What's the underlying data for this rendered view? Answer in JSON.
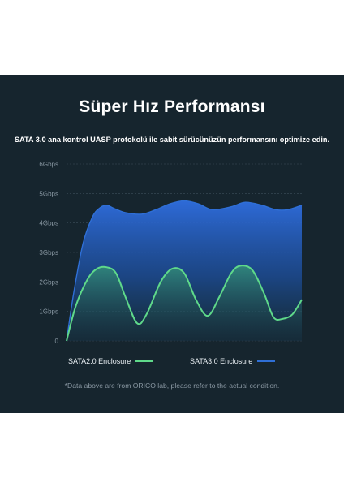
{
  "header": {
    "title": "Süper Hız Performansı",
    "subtitle": "SATA 3.0 ana kontrol UASP protokolü ile sabit sürücünüzün performansını optimize edin."
  },
  "legend": {
    "sata2": "SATA2.0 Enclosure",
    "sata3": "SATA3.0 Enclosure"
  },
  "footnote": "*Data above are from ORICO lab, please refer to the actual condition.",
  "colors": {
    "background": "#16252e",
    "sata2": "#5fd98a",
    "sata3": "#2f6fd6"
  },
  "chart_data": {
    "type": "area",
    "ylim": [
      0,
      6
    ],
    "yticks": [
      0,
      1,
      2,
      3,
      4,
      5,
      6
    ],
    "ytick_labels": [
      "0",
      "1Gbps",
      "2Gbps",
      "3Gbps",
      "4Gbps",
      "5Gbps",
      "6Gbps"
    ],
    "grid": true,
    "legend_position": "bottom",
    "xlim": [
      0,
      1
    ],
    "series": [
      {
        "name": "SATA3.0 Enclosure",
        "color": "#2f6fd6",
        "x": [
          0,
          0.03,
          0.07,
          0.11,
          0.14,
          0.17,
          0.2,
          0.25,
          0.32,
          0.38,
          0.44,
          0.5,
          0.56,
          0.62,
          0.7,
          0.76,
          0.83,
          0.89,
          0.94,
          1.0
        ],
        "values": [
          0,
          1.6,
          3.3,
          4.2,
          4.5,
          4.6,
          4.5,
          4.35,
          4.3,
          4.45,
          4.65,
          4.75,
          4.65,
          4.45,
          4.55,
          4.7,
          4.6,
          4.45,
          4.45,
          4.6
        ]
      },
      {
        "name": "SATA2.0 Enclosure",
        "color": "#5fd98a",
        "x": [
          0,
          0.04,
          0.09,
          0.13,
          0.17,
          0.21,
          0.25,
          0.3,
          0.34,
          0.4,
          0.45,
          0.5,
          0.55,
          0.6,
          0.65,
          0.7,
          0.74,
          0.79,
          0.84,
          0.88,
          0.92,
          0.96,
          1.0
        ],
        "values": [
          0,
          1.2,
          2.1,
          2.45,
          2.5,
          2.3,
          1.5,
          0.6,
          0.9,
          2.0,
          2.45,
          2.3,
          1.4,
          0.85,
          1.5,
          2.3,
          2.55,
          2.4,
          1.6,
          0.8,
          0.75,
          0.9,
          1.4
        ]
      }
    ]
  }
}
